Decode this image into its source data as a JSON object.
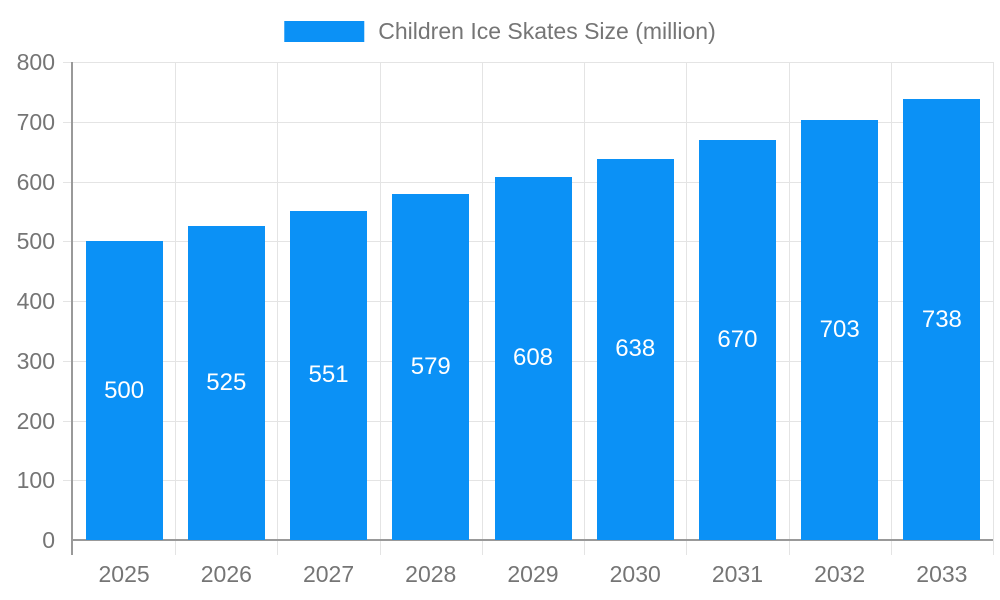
{
  "chart_data": {
    "type": "bar",
    "title": "Children Ice Skates Size (million)",
    "legend": {
      "label": "Children Ice Skates Size (million)",
      "position": "top-center"
    },
    "categories": [
      "2025",
      "2026",
      "2027",
      "2028",
      "2029",
      "2030",
      "2031",
      "2032",
      "2033"
    ],
    "series": [
      {
        "name": "Children Ice Skates Size (million)",
        "values": [
          500,
          525,
          551,
          579,
          608,
          638,
          670,
          703,
          738
        ]
      }
    ],
    "value_labels_shown": true,
    "xlabel": "",
    "ylabel": "",
    "ylim": [
      0,
      800
    ],
    "yticks": [
      0,
      100,
      200,
      300,
      400,
      500,
      600,
      700,
      800
    ],
    "grid": true,
    "colors": {
      "bar": "#0b91f6",
      "grid": "#e4e4e4",
      "axis": "#999999",
      "label": "#757575",
      "bar_label": "#ffffff",
      "background": "#ffffff"
    }
  }
}
